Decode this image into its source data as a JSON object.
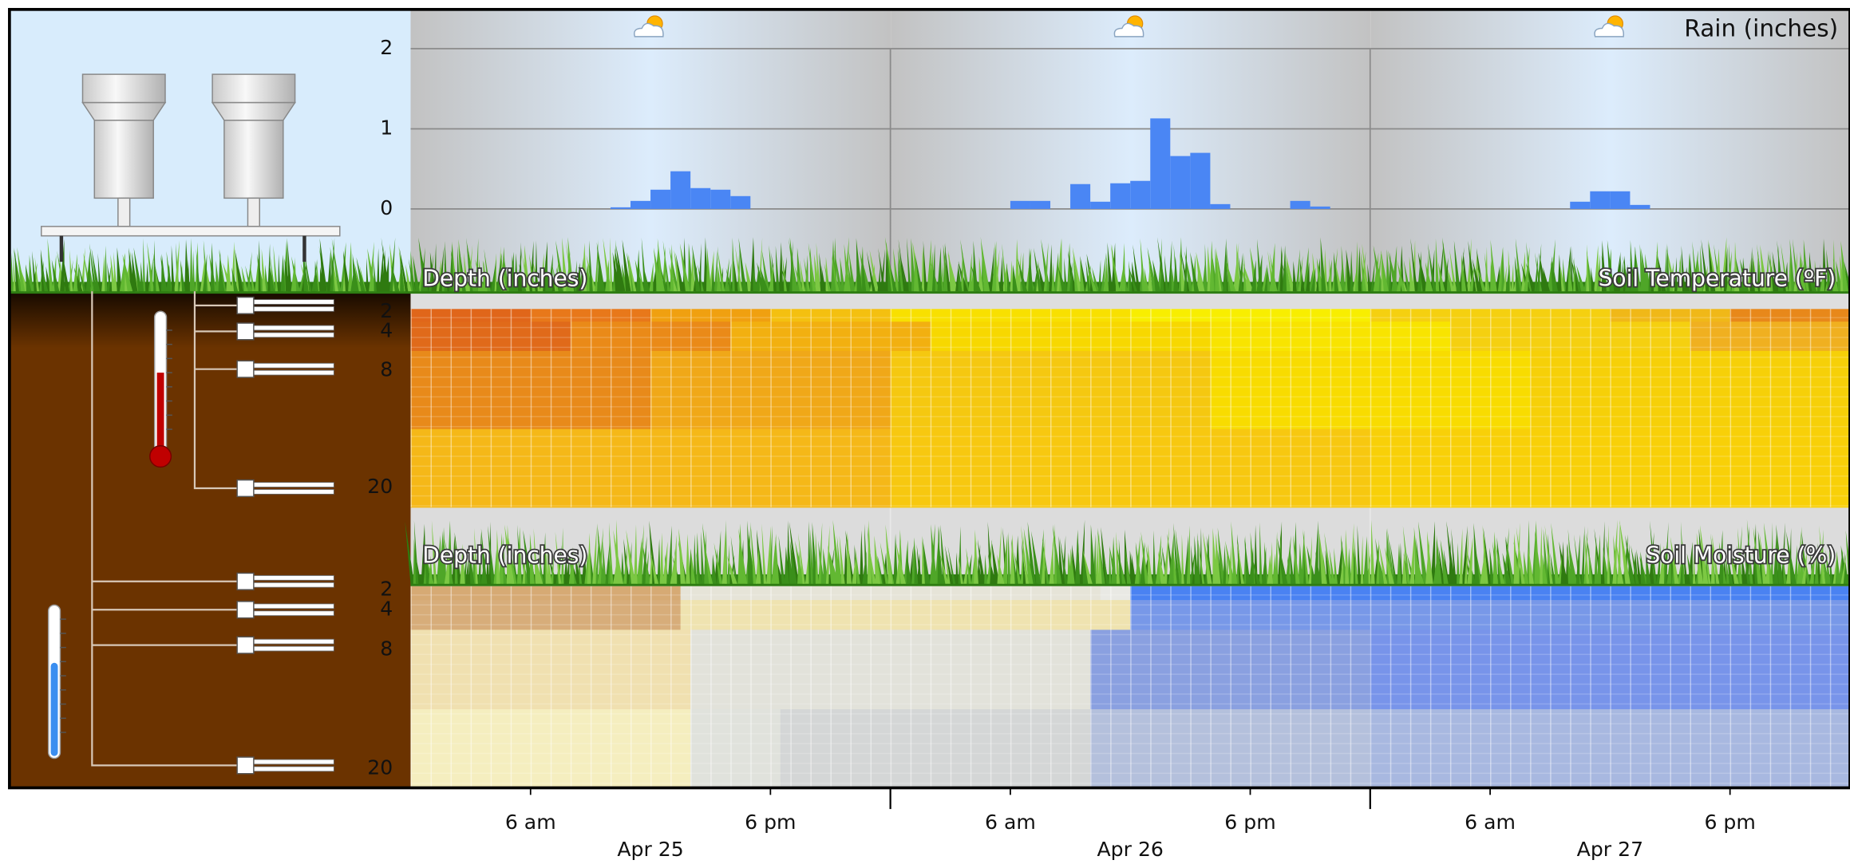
{
  "chart_data": [
    {
      "type": "bar",
      "title": "Rain (inches)",
      "x": [
        10,
        11,
        12,
        13,
        14,
        15,
        16,
        30,
        31,
        33,
        34,
        35,
        36,
        37,
        38,
        39,
        40,
        44,
        45,
        58,
        59,
        60,
        61
      ],
      "values": [
        0.02,
        0.1,
        0.24,
        0.47,
        0.26,
        0.24,
        0.16,
        0.1,
        0.1,
        0.31,
        0.09,
        0.32,
        0.35,
        1.13,
        0.66,
        0.7,
        0.06,
        0.1,
        0.03,
        0.09,
        0.22,
        0.22,
        0.05
      ],
      "color": "#4a86f4",
      "xlim": [
        0,
        72
      ],
      "xticks": [
        {
          "value": 6,
          "label": "6 am"
        },
        {
          "value": 18,
          "label": "6 pm"
        },
        {
          "value": 30,
          "label": "6 am"
        },
        {
          "value": 42,
          "label": "6 pm"
        },
        {
          "value": 54,
          "label": "6 am"
        },
        {
          "value": 66,
          "label": "6 pm"
        }
      ],
      "date_labels": [
        {
          "value": 12,
          "label": "Apr 25"
        },
        {
          "value": 36,
          "label": "Apr 26"
        },
        {
          "value": 60,
          "label": "Apr 27"
        }
      ],
      "day_lines": [
        24,
        48
      ],
      "ylim": [
        -0.41,
        2.49
      ],
      "yticks": [
        0,
        1,
        2
      ],
      "grid": true
    },
    {
      "type": "heatmap",
      "title": "Soil Temperature (ºF)",
      "y_label": "Depth (inches)",
      "ylim": [
        1.7,
        22
      ],
      "yticks": [
        2,
        4,
        8,
        20
      ],
      "rows": [
        {
          "x": [
            0,
            6,
            12,
            18,
            24,
            36,
            48,
            60,
            66
          ],
          "colors": [
            "#e0661a",
            "#e8781a",
            "#f0a010",
            "#f4c010",
            "#f8e000",
            "#f8ee00",
            "#f5d010",
            "#f0b818",
            "#e8881a"
          ]
        },
        {
          "x": [
            0,
            8,
            16,
            26,
            40,
            52,
            64
          ],
          "colors": [
            "#e06a1a",
            "#ea8a18",
            "#f2b010",
            "#f7d800",
            "#f8e400",
            "#f5d010",
            "#f0b020"
          ]
        },
        {
          "x": [
            0,
            12,
            24,
            40,
            56
          ],
          "colors": [
            "#e88a1a",
            "#f0a818",
            "#f5c810",
            "#f8dc00",
            "#f6d008"
          ]
        },
        {
          "x": [
            0,
            24,
            48
          ],
          "colors": [
            "#f5b818",
            "#f7c810",
            "#f8d008"
          ]
        }
      ]
    },
    {
      "type": "heatmap",
      "title": "Soil Moisture (%)",
      "y_label": "Depth (inches)",
      "ylim": [
        1.6,
        21.8
      ],
      "yticks": [
        2,
        4,
        8,
        20
      ],
      "rows": [
        {
          "x": [
            0,
            13.5,
            34.5,
            36
          ],
          "colors": [
            "#d6aa74",
            "#e6e4d8",
            "#e9e9e4",
            "#4a82f2"
          ]
        },
        {
          "x": [
            0,
            13.5,
            36
          ],
          "colors": [
            "#d7ad7a",
            "#efe3b0",
            "#7898e8"
          ]
        },
        {
          "x": [
            0,
            14,
            34,
            48
          ],
          "colors": [
            "#f0e0b0",
            "#e2e2da",
            "#8aa0e0",
            "#7894ea"
          ]
        },
        {
          "x": [
            0,
            14,
            18.5,
            34,
            48
          ],
          "colors": [
            "#f5eebf",
            "#e0e2dc",
            "#d4d6d6",
            "#b4c0dc",
            "#a8b8e0"
          ]
        }
      ]
    }
  ]
}
